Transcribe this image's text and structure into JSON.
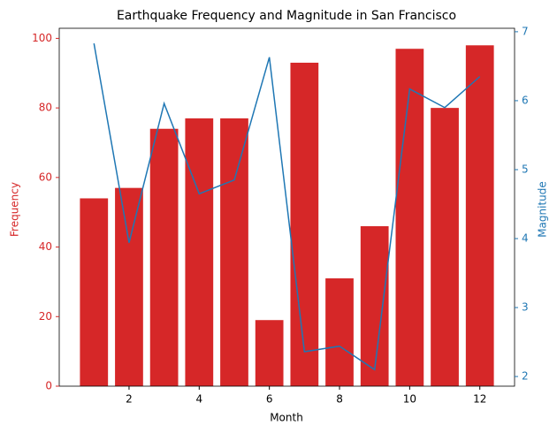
{
  "chart_data": {
    "type": "bar_line",
    "title": "Earthquake Frequency and Magnitude in San Francisco",
    "xlabel": "Month",
    "ylabel": "Frequency",
    "y2label": "Magnitude",
    "x": [
      1,
      2,
      3,
      4,
      5,
      6,
      7,
      8,
      9,
      10,
      11,
      12
    ],
    "series": [
      {
        "name": "Frequency",
        "type": "bar",
        "color": "#d62728",
        "values": [
          54,
          57,
          74,
          77,
          77,
          19,
          93,
          31,
          46,
          97,
          80,
          98
        ]
      },
      {
        "name": "Magnitude",
        "type": "line",
        "axis": "y2",
        "color": "#1f77b4",
        "values": [
          6.83,
          3.94,
          5.96,
          4.65,
          4.85,
          6.63,
          2.36,
          2.44,
          2.1,
          6.17,
          5.9,
          6.35
        ]
      }
    ],
    "xlim": [
      0.01,
      12.99
    ],
    "xticks": [
      2,
      4,
      6,
      8,
      10,
      12
    ],
    "ylim": [
      0,
      102.9
    ],
    "yticks": [
      0,
      20,
      40,
      60,
      80,
      100
    ],
    "y2lim": [
      1.86,
      7.05
    ],
    "y2ticks": [
      2,
      3,
      4,
      5,
      6,
      7
    ]
  }
}
